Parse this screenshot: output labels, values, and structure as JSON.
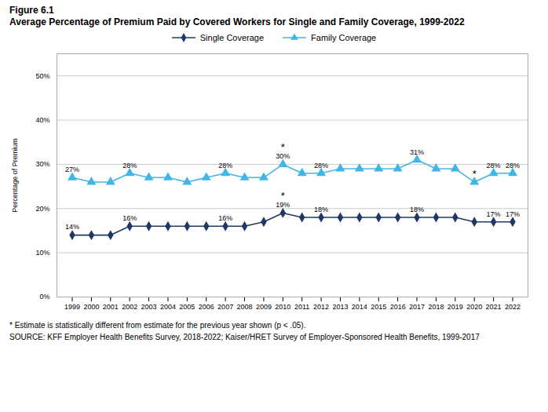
{
  "chart_data": {
    "type": "line",
    "title": "Figure 6.1",
    "subtitle": "Average Percentage of Premium Paid by Covered Workers for Single and Family Coverage, 1999-2022",
    "caption": [
      "* Estimate is statistically different from estimate for the previous year shown (p < .05).",
      "SOURCE: KFF Employer Health Benefits Survey, 2018-2022; Kaiser/HRET Survey of Employer-Sponsored Health Benefits, 1999-2017"
    ],
    "ylabel": "Percentage of Premium",
    "x": [
      1999,
      2000,
      2001,
      2002,
      2003,
      2004,
      2005,
      2006,
      2007,
      2008,
      2009,
      2010,
      2011,
      2012,
      2013,
      2014,
      2015,
      2016,
      2017,
      2018,
      2019,
      2020,
      2021,
      2022
    ],
    "xlim": [
      1998.2,
      2022.8
    ],
    "xticks": [
      1999,
      2000,
      2001,
      2002,
      2003,
      2004,
      2005,
      2006,
      2007,
      2008,
      2009,
      2010,
      2011,
      2012,
      2013,
      2014,
      2015,
      2016,
      2017,
      2018,
      2019,
      2020,
      2021,
      2022
    ],
    "ylim": [
      0,
      55
    ],
    "yticks": [
      {
        "value": 0,
        "label": "0%"
      },
      {
        "value": 10,
        "label": "10%"
      },
      {
        "value": 20,
        "label": "20%"
      },
      {
        "value": 30,
        "label": "30%"
      },
      {
        "value": 40,
        "label": "40%"
      },
      {
        "value": 50,
        "label": "50%"
      }
    ],
    "grid": true,
    "legend": "top",
    "data_labels": true,
    "series": [
      {
        "name": "Single Coverage",
        "color": "#1f3864",
        "marker": "diamond",
        "values": [
          14,
          14,
          14,
          16,
          16,
          16,
          16,
          16,
          16,
          16,
          17,
          19,
          18,
          18,
          18,
          18,
          18,
          18,
          18,
          18,
          18,
          17,
          17,
          17
        ],
        "value_labels": [
          "14%",
          null,
          null,
          "16%",
          null,
          null,
          null,
          null,
          "16%",
          null,
          null,
          "19%",
          null,
          "18%",
          null,
          null,
          null,
          null,
          "18%",
          null,
          null,
          null,
          "17%",
          "17%"
        ]
      },
      {
        "name": "Family Coverage",
        "color": "#41b6e6",
        "marker": "triangle",
        "values": [
          27,
          26,
          26,
          28,
          27,
          27,
          26,
          27,
          28,
          27,
          27,
          30,
          28,
          28,
          29,
          29,
          29,
          29,
          31,
          29,
          29,
          26,
          28,
          28
        ],
        "value_labels": [
          "27%",
          null,
          null,
          "28%",
          null,
          null,
          null,
          null,
          "28%",
          null,
          null,
          "30%",
          null,
          "28%",
          null,
          null,
          null,
          null,
          "31%",
          null,
          null,
          null,
          "28%",
          "28%"
        ]
      }
    ],
    "annotations": [
      {
        "text": "*",
        "x": 2010,
        "series": "Single Coverage"
      },
      {
        "text": "*",
        "x": 2010,
        "series": "Family Coverage"
      },
      {
        "text": "*",
        "x": 2020,
        "series": "Family Coverage"
      }
    ]
  }
}
